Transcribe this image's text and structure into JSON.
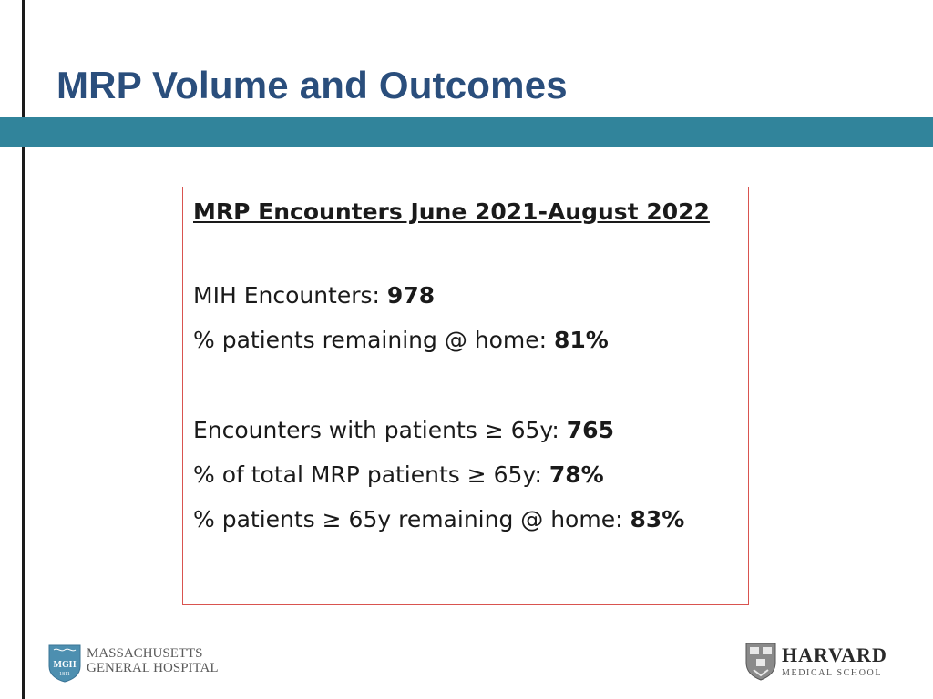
{
  "title": "MRP Volume and Outcomes",
  "box": {
    "heading": "MRP Encounters June 2021-August 2022",
    "lines": [
      {
        "label": "MIH Encounters: ",
        "value": "978"
      },
      {
        "label": "% patients remaining @ home: ",
        "value": "81%"
      },
      {
        "label": "Encounters with patients ≥ 65y: ",
        "value": "765"
      },
      {
        "label": "% of total MRP patients ≥ 65y: ",
        "value": "78%"
      },
      {
        "label": "% patients ≥ 65y remaining @ home: ",
        "value": "83%"
      }
    ]
  },
  "logos": {
    "mgh": {
      "line1": "MASSACHUSETTS",
      "line2": "GENERAL HOSPITAL",
      "shield_text": "MGH",
      "shield_year": "1811"
    },
    "harvard": {
      "name": "HARVARD",
      "sub": "MEDICAL SCHOOL"
    }
  },
  "colors": {
    "title": "#2a4e7c",
    "band": "#31849b",
    "box_border": "#d9534f"
  }
}
